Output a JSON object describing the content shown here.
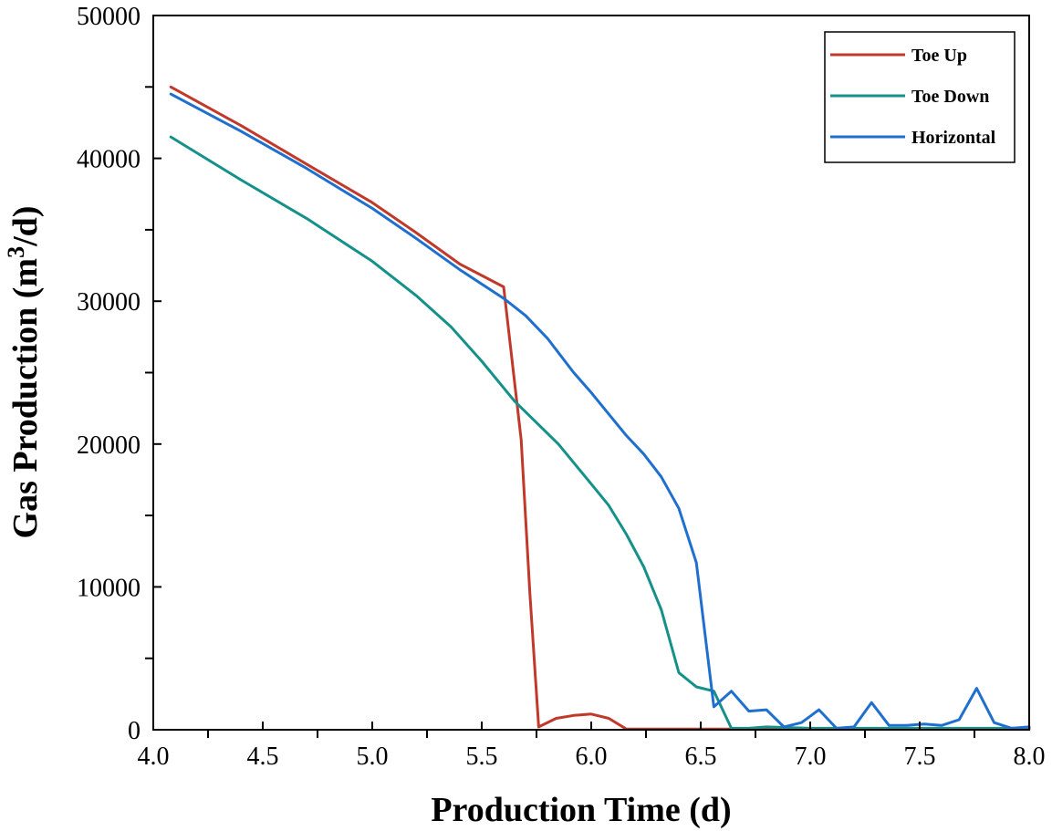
{
  "chart_data": {
    "type": "line",
    "title": "",
    "xlabel": "Production Time (d)",
    "ylabel_main": "Gas Production (m",
    "ylabel_sup": "3",
    "ylabel_tail": "/d)",
    "xlim": [
      4.0,
      8.0
    ],
    "ylim": [
      0,
      50000
    ],
    "xticks": [
      4.0,
      4.5,
      5.0,
      5.5,
      6.0,
      6.5,
      7.0,
      7.5,
      8.0
    ],
    "xtick_labels": [
      "4.0",
      "4.5",
      "5.0",
      "5.5",
      "6.0",
      "6.5",
      "7.0",
      "7.5",
      "8.0"
    ],
    "yticks": [
      0,
      10000,
      20000,
      30000,
      40000,
      50000
    ],
    "ytick_labels": [
      "0",
      "10000",
      "20000",
      "30000",
      "40000",
      "50000"
    ],
    "grid": false,
    "legend_position": "top-right",
    "series": [
      {
        "name": "Toe Up",
        "color": "#c0392b",
        "x": [
          4.08,
          4.4,
          4.7,
          5.0,
          5.2,
          5.4,
          5.5,
          5.6,
          5.68,
          5.72,
          5.76,
          5.84,
          5.92,
          6.0,
          6.08,
          6.16,
          6.4,
          6.64,
          7.0,
          7.5,
          8.0
        ],
        "y": [
          45000,
          42300,
          39600,
          36900,
          34800,
          32600,
          31800,
          31000,
          20300,
          9500,
          200,
          800,
          1000,
          1100,
          800,
          50,
          50,
          50,
          50,
          50,
          50
        ]
      },
      {
        "name": "Toe Down",
        "color": "#15918a",
        "x": [
          4.08,
          4.4,
          4.7,
          5.0,
          5.2,
          5.36,
          5.5,
          5.65,
          5.85,
          6.0,
          6.08,
          6.16,
          6.24,
          6.32,
          6.4,
          6.48,
          6.56,
          6.64,
          6.72,
          6.8,
          7.0,
          7.5,
          8.0
        ],
        "y": [
          41500,
          38500,
          35800,
          32800,
          30400,
          28200,
          25800,
          23000,
          20000,
          17200,
          15700,
          13700,
          11400,
          8400,
          4000,
          3000,
          2700,
          100,
          100,
          200,
          100,
          100,
          100
        ]
      },
      {
        "name": "Horizontal",
        "color": "#1f6fce",
        "x": [
          4.08,
          4.4,
          4.7,
          5.0,
          5.2,
          5.4,
          5.6,
          5.7,
          5.8,
          5.92,
          6.0,
          6.08,
          6.16,
          6.24,
          6.32,
          6.4,
          6.48,
          6.56,
          6.64,
          6.72,
          6.8,
          6.88,
          6.96,
          7.04,
          7.12,
          7.2,
          7.28,
          7.36,
          7.44,
          7.52,
          7.6,
          7.68,
          7.76,
          7.84,
          7.92,
          8.0
        ],
        "y": [
          44500,
          41900,
          39300,
          36500,
          34400,
          32200,
          30200,
          29000,
          27400,
          25000,
          23600,
          22100,
          20600,
          19300,
          17700,
          15500,
          11700,
          1600,
          2700,
          1300,
          1400,
          200,
          500,
          1400,
          100,
          200,
          1900,
          300,
          300,
          400,
          300,
          700,
          2900,
          500,
          100,
          200
        ]
      }
    ]
  }
}
